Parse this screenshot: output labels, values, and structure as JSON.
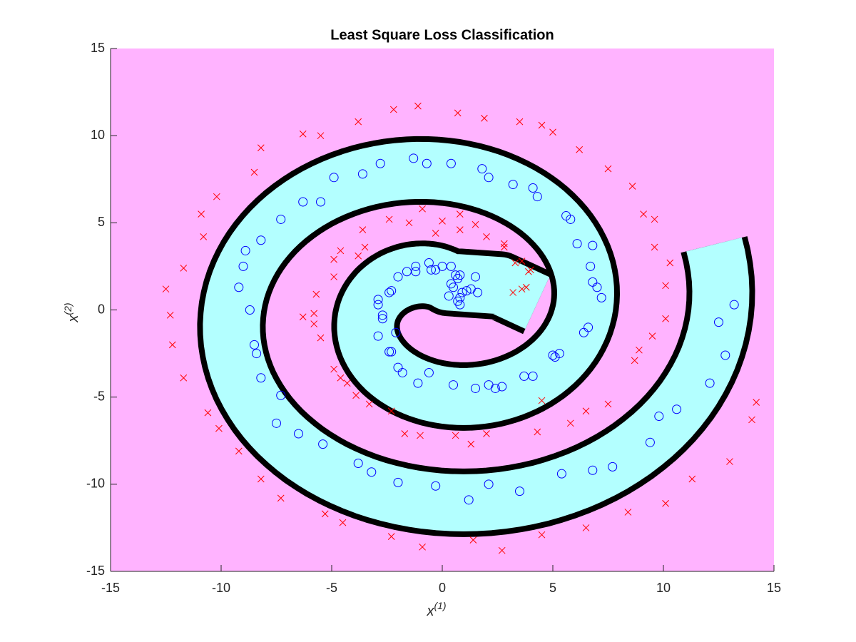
{
  "chart_data": {
    "type": "scatter",
    "title": "Least Square Loss Classification",
    "xlabel": "x",
    "xlabel_superscript": "(1)",
    "ylabel": "x",
    "ylabel_superscript": "(2)",
    "xlim": [
      -15,
      15
    ],
    "ylim": [
      -15,
      15
    ],
    "xticks": [
      -15,
      -10,
      -5,
      0,
      5,
      10,
      15
    ],
    "yticks": [
      -15,
      -10,
      -5,
      0,
      5,
      10,
      15
    ],
    "series": [
      {
        "color": "#0000ff",
        "marker": "o",
        "x": [
          0.3,
          0.5,
          0.6,
          0.7,
          0.8,
          0.8,
          0.9,
          0.8,
          0.7,
          1.1,
          1.3,
          1.5,
          1.6,
          0.4,
          0.4,
          0,
          -0.5,
          -0.3,
          -0.6,
          -1.2,
          -1.2,
          -1.6,
          -2,
          -2.3,
          -2.4,
          -2.9,
          -2.9,
          -2.7,
          -2.7,
          -2.9,
          -2.1,
          -2.4,
          -2.3,
          -2,
          -1.8,
          -1.1,
          -0.6,
          0.5,
          1.5,
          2.1,
          2.4,
          2.7,
          3.7,
          4.1,
          5,
          5.1,
          5.3,
          6.4,
          6.6,
          6.7,
          6.8,
          7,
          7.2,
          6.1,
          6.8,
          5.6,
          5.8,
          4.1,
          4.3,
          3.2,
          2.1,
          1.8,
          0.4,
          -0.7,
          -1.3,
          -2.8,
          -3.6,
          -4.9,
          -5.5,
          -6.3,
          -7.3,
          -8.2,
          -8.9,
          -9,
          -9.2,
          -8.7,
          -8.5,
          -8.4,
          -8.2,
          -7.3,
          -7.5,
          -6.5,
          -5.4,
          -3.8,
          -3.2,
          -2,
          -0.3,
          1.2,
          2.1,
          3.5,
          5.4,
          6.8,
          7.7,
          9.4,
          9.8,
          10.6,
          12.1,
          12.5,
          12.8,
          13.2
        ],
        "y": [
          0.8,
          1.3,
          2,
          1.8,
          2,
          0.7,
          1,
          0.3,
          0.5,
          1.1,
          1.2,
          1.9,
          1,
          2.5,
          1.5,
          2.5,
          2.3,
          2.3,
          2.7,
          2.5,
          2.2,
          2.2,
          1.9,
          1.1,
          1,
          0.6,
          0.3,
          -0.3,
          -0.5,
          -1.5,
          -1.3,
          -2.4,
          -2.4,
          -3.3,
          -3.6,
          -4.2,
          -3.6,
          -4.3,
          -4.5,
          -4.3,
          -4.5,
          -4.4,
          -3.8,
          -3.8,
          -2.6,
          -2.7,
          -2.5,
          -1.3,
          -1,
          2.5,
          1.6,
          1.3,
          0.7,
          3.8,
          3.7,
          5.4,
          5.2,
          7,
          6.5,
          7.2,
          7.6,
          8.1,
          8.4,
          8.4,
          8.7,
          8.4,
          7.8,
          7.6,
          6.2,
          6.2,
          5.2,
          4,
          3.4,
          2.5,
          1.3,
          0,
          -2,
          -2.5,
          -3.9,
          -4.9,
          -6.5,
          -7.1,
          -7.7,
          -8.8,
          -9.3,
          -9.9,
          -10.1,
          -10.9,
          -10,
          -10.4,
          -9.4,
          -9.2,
          -9,
          -7.6,
          -6.1,
          -5.7,
          -4.2,
          -0.7,
          -2.6,
          0.3
        ]
      },
      {
        "color": "#ff0000",
        "marker": "x",
        "x": [
          -1.1,
          -2.2,
          0.7,
          1.9,
          -3.8,
          3.5,
          4.5,
          5,
          -6.3,
          -5.5,
          -8.2,
          6.2,
          -8.5,
          7.5,
          8.6,
          -10.2,
          -10.9,
          9.1,
          9.6,
          -10.8,
          9.6,
          10.3,
          -11.7,
          10.1,
          -12.5,
          -12.3,
          10.1,
          -12.2,
          9.5,
          8.9,
          8.7,
          -11.7,
          -10.6,
          -10.1,
          7.5,
          6.5,
          5.8,
          14.2,
          -9.2,
          14,
          13,
          -8.2,
          11.3,
          -7.3,
          10.1,
          -5.3,
          8.4,
          -4.5,
          6.5,
          -2.3,
          4.5,
          -0.9,
          1.4,
          2.7,
          -0.9,
          -1.5,
          -2.4,
          -3.6,
          -3.5,
          -3.8,
          -4.9,
          -4.6,
          0,
          0.8,
          1.5,
          0.8,
          -0.3,
          2,
          2.8,
          2.8,
          3.3,
          3.6,
          3.9,
          4,
          3.6,
          3.8,
          3.2,
          -4.9,
          -5.7,
          -5.8,
          -6.3,
          -5.8,
          -5.5,
          -4.9,
          -4.6,
          -4.3,
          -3.9,
          -3.3,
          -2.3,
          -1.7,
          -1,
          0.6,
          1.3,
          2,
          4.3,
          4.5
        ],
        "y": [
          11.7,
          11.5,
          11.3,
          11,
          10.8,
          10.8,
          10.6,
          10.2,
          10.1,
          10,
          9.3,
          9.2,
          7.9,
          8.1,
          7.1,
          6.5,
          5.5,
          5.5,
          5.2,
          4.2,
          3.6,
          2.7,
          2.4,
          1.4,
          1.2,
          -0.3,
          -0.5,
          -2,
          -1.5,
          -2.3,
          -2.9,
          -3.9,
          -5.9,
          -6.8,
          -5.4,
          -5.8,
          -6.5,
          -5.3,
          -8.1,
          -6.3,
          -8.7,
          -9.7,
          -9.7,
          -10.8,
          -11.1,
          -11.7,
          -11.6,
          -12.2,
          -12.5,
          -13,
          -12.9,
          -13.6,
          -13.2,
          -13.8,
          5.8,
          5,
          5.2,
          4.6,
          3.6,
          3.1,
          2.9,
          3.4,
          5.1,
          5.5,
          4.9,
          4.6,
          4.4,
          4.2,
          3.8,
          3.6,
          2.7,
          2.8,
          2.2,
          2.3,
          1.2,
          1.3,
          1,
          1.9,
          0.9,
          -0.2,
          -0.4,
          -0.8,
          -1.6,
          -3.4,
          -3.9,
          -4.2,
          -4.9,
          -5.4,
          -5.8,
          -7.1,
          -7.2,
          -7.2,
          -7.7,
          -7.1,
          -7,
          -5.2
        ]
      }
    ]
  }
}
